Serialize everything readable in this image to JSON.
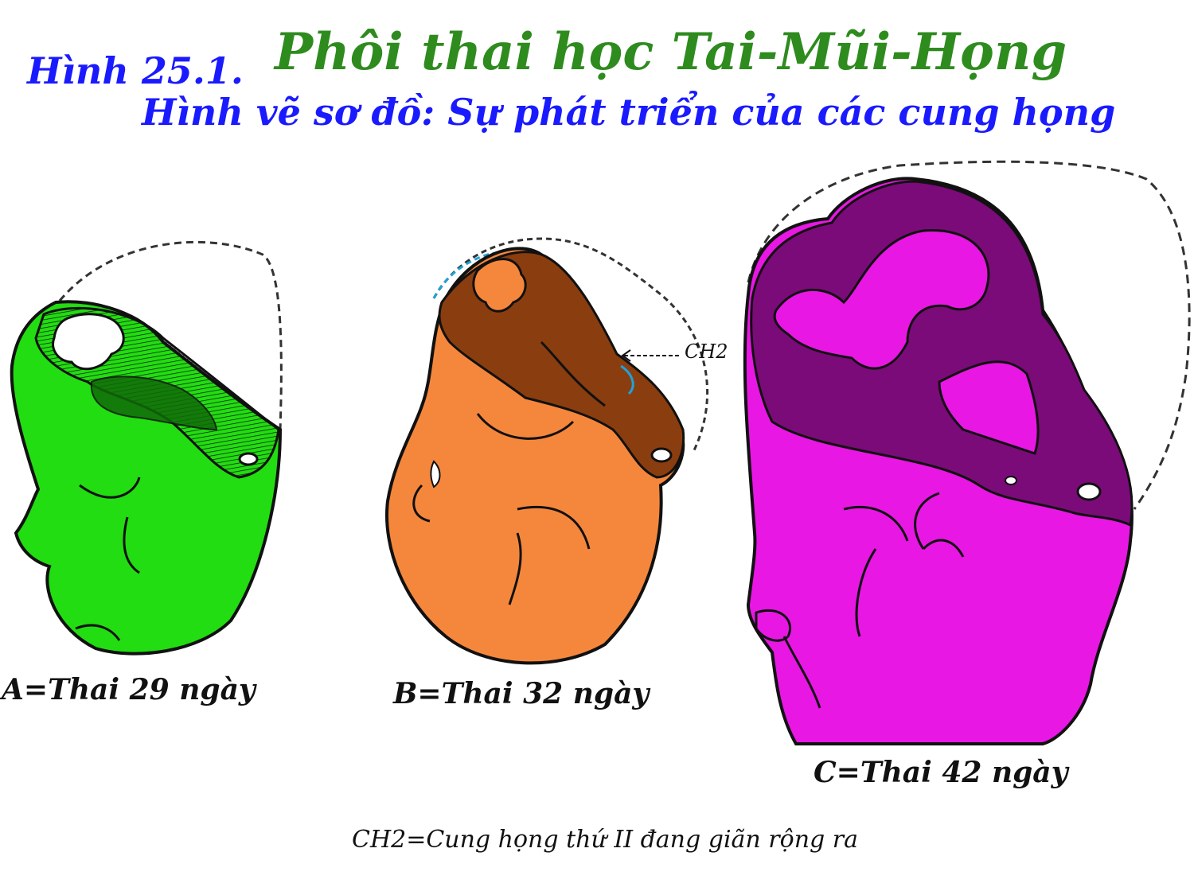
{
  "figure": {
    "number": "Hình 25.1.",
    "title": "Phôi thai học Tai-Mũi-Họng",
    "subtitle": "Hình vẽ sơ đồ: Sự phát triển của các cung họng"
  },
  "panels": [
    {
      "id": "A",
      "caption": "A=Thai 29 ngày",
      "color": "#22dd11",
      "dark": "#106a08"
    },
    {
      "id": "B",
      "caption": "B=Thai 32 ngày",
      "color": "#f5873c",
      "dark": "#8a3d0f"
    },
    {
      "id": "C",
      "caption": "C=Thai 42 ngày",
      "color": "#e817e3",
      "dark": "#7a0b78"
    }
  ],
  "annotation": {
    "label": "CH2"
  },
  "footnote": "CH2=Cung họng thứ II đang giãn rộng ra",
  "colors": {
    "figure_number": "#1a1aff",
    "title": "#2e8b1e",
    "subtitle": "#1a1aff"
  }
}
